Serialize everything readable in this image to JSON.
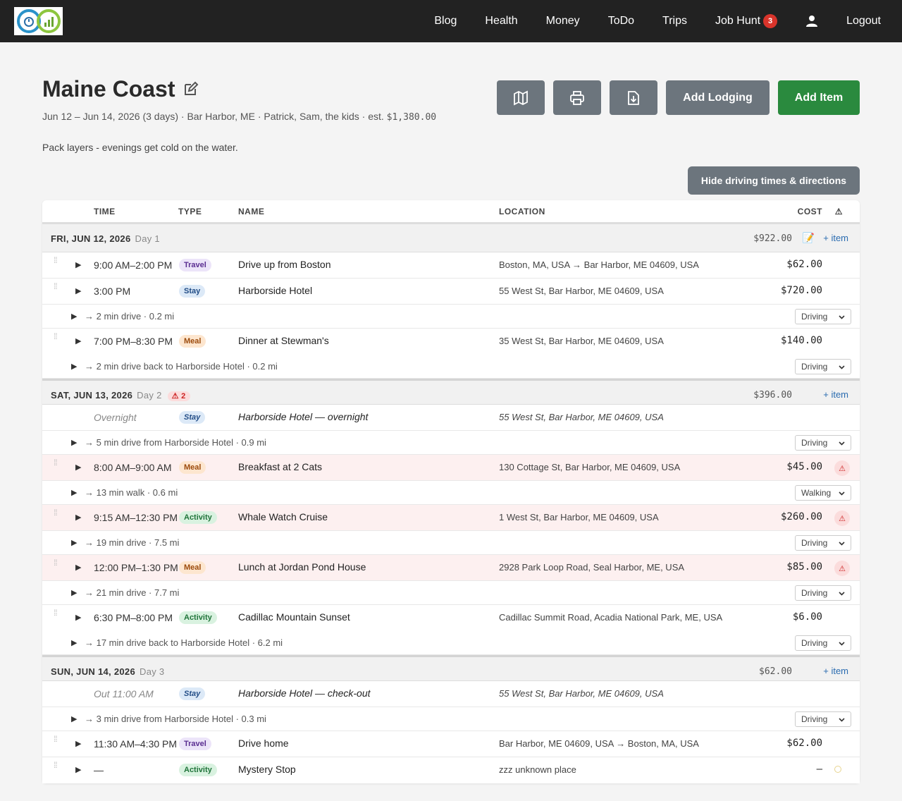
{
  "nav": {
    "links": [
      "Blog",
      "Health",
      "Money",
      "ToDo",
      "Trips"
    ],
    "job_hunt": "Job Hunt",
    "job_hunt_badge": "3",
    "logout": "Logout"
  },
  "trip": {
    "title": "Maine Coast",
    "subtitle_prefix": "Jun 12 – Jun 14, 2026 (3 days) · Bar Harbor, ME · Patrick, Sam, the kids · est. ",
    "subtitle_cost": "$1,380.00",
    "note": "Pack layers - evenings get cold on the water."
  },
  "actions": {
    "map_icon": "map-icon",
    "print_icon": "printer-icon",
    "export_icon": "file-download-icon",
    "add_lodging": "Add Lodging",
    "add_item": "Add Item",
    "hide_directions": "Hide driving times & directions"
  },
  "table": {
    "headers": {
      "time": "TIME",
      "type": "TYPE",
      "name": "NAME",
      "location": "LOCATION",
      "cost": "COST",
      "warn": "⚠"
    },
    "add_item_label": "+ item",
    "note_icon": "📝",
    "rows": [
      {
        "kind": "day",
        "label": "FRI, JUN 12, 2026",
        "day": "Day 1",
        "cost": "$922.00",
        "note": true
      },
      {
        "kind": "item",
        "time": "9:00 AM–2:00 PM",
        "type": "Travel",
        "name": "Drive up from Boston",
        "location": "Boston, MA, USA → Bar Harbor, ME 04609, USA",
        "cost": "$62.00"
      },
      {
        "kind": "item",
        "time": "3:00 PM",
        "type": "Stay",
        "name": "Harborside Hotel",
        "location": "55 West St, Bar Harbor, ME 04609, USA",
        "cost": "$720.00"
      },
      {
        "kind": "drive",
        "text": "→ 2 min drive · 0.2 mi",
        "mode": "Driving"
      },
      {
        "kind": "item",
        "time": "7:00 PM–8:30 PM",
        "type": "Meal",
        "name": "Dinner at Stewman's",
        "location": "35 West St, Bar Harbor, ME 04609, USA",
        "cost": "$140.00",
        "nb": true
      },
      {
        "kind": "drive",
        "text": "→ 2 min drive back to Harborside Hotel · 0.2 mi",
        "mode": "Driving"
      },
      {
        "kind": "day",
        "label": "SAT, JUN 13, 2026",
        "day": "Day 2",
        "warn": "⚠ 2",
        "cost": "$396.00",
        "gap": true
      },
      {
        "kind": "item",
        "ghost": true,
        "time": "Overnight",
        "type": "Stay",
        "name": "Harborside Hotel — overnight",
        "location": "55 West St, Bar Harbor, ME 04609, USA",
        "cost": ""
      },
      {
        "kind": "drive",
        "text": "→ 5 min drive from Harborside Hotel · 0.9 mi",
        "mode": "Driving"
      },
      {
        "kind": "item",
        "warn": true,
        "time": "8:00 AM–9:00 AM",
        "type": "Meal",
        "name": "Breakfast at 2 Cats",
        "location": "130 Cottage St, Bar Harbor, ME 04609, USA",
        "cost": "$45.00"
      },
      {
        "kind": "drive",
        "text": "→ 13 min walk · 0.6 mi",
        "mode": "Walking"
      },
      {
        "kind": "item",
        "warn": true,
        "time": "9:15 AM–12:30 PM",
        "type": "Activity",
        "name": "Whale Watch Cruise",
        "location": "1 West St, Bar Harbor, ME 04609, USA",
        "cost": "$260.00"
      },
      {
        "kind": "drive",
        "text": "→ 19 min drive · 7.5 mi",
        "mode": "Driving"
      },
      {
        "kind": "item",
        "warn": true,
        "time": "12:00 PM–1:30 PM",
        "type": "Meal",
        "name": "Lunch at Jordan Pond House",
        "location": "2928 Park Loop Road, Seal Harbor, ME, USA",
        "cost": "$85.00"
      },
      {
        "kind": "drive",
        "text": "→ 21 min drive · 7.7 mi",
        "mode": "Driving"
      },
      {
        "kind": "item",
        "time": "6:30 PM–8:00 PM",
        "type": "Activity",
        "name": "Cadillac Mountain Sunset",
        "location": "Cadillac Summit Road, Acadia National Park, ME, USA",
        "cost": "$6.00",
        "nb": true
      },
      {
        "kind": "drive",
        "text": "→ 17 min drive back to Harborside Hotel · 6.2 mi",
        "mode": "Driving"
      },
      {
        "kind": "day",
        "label": "SUN, JUN 14, 2026",
        "day": "Day 3",
        "cost": "$62.00",
        "gap": true
      },
      {
        "kind": "item",
        "ghost": true,
        "time": "Out 11:00 AM",
        "type": "Stay",
        "name": "Harborside Hotel — check-out",
        "location": "55 West St, Bar Harbor, ME 04609, USA",
        "cost": ""
      },
      {
        "kind": "drive",
        "text": "→ 3 min drive from Harborside Hotel · 0.3 mi",
        "mode": "Driving"
      },
      {
        "kind": "item",
        "time": "11:30 AM–4:30 PM",
        "type": "Travel",
        "name": "Drive home",
        "location": "Bar Harbor, ME 04609, USA → Boston, MA, USA",
        "cost": "$62.00"
      },
      {
        "kind": "item",
        "time": "—",
        "type": "Activity",
        "name": "Mystery Stop",
        "location": "zzz unknown place",
        "cost": "–",
        "hint": true,
        "nb": true
      }
    ]
  }
}
